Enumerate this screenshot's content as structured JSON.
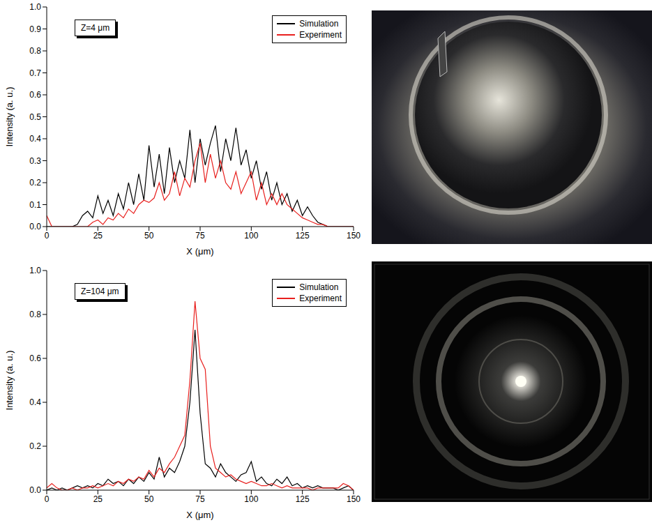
{
  "chart_data": [
    {
      "type": "line",
      "annotation": "Z=4 μm",
      "x_label": "X (μm)",
      "y_label": "Intensity (a. u.)",
      "legend": "upper right",
      "xlim": [
        0,
        150
      ],
      "ylim": [
        0,
        1
      ],
      "xticks": [
        0,
        25,
        50,
        75,
        100,
        125,
        150
      ],
      "yticks": [
        {
          "value": 0,
          "label": "0.0"
        },
        0.1,
        0.2,
        0.3,
        0.4,
        0.5,
        0.6,
        0.7,
        0.8,
        0.9,
        {
          "value": 1,
          "label": "1.0"
        }
      ],
      "x": [
        0,
        2.5,
        5,
        7.5,
        10,
        12.5,
        15,
        17.5,
        20,
        22.5,
        25,
        27.5,
        30,
        32.5,
        35,
        37.5,
        40,
        42.5,
        45,
        47.5,
        50,
        52.5,
        55,
        57.5,
        60,
        62.5,
        65,
        67.5,
        70,
        72.5,
        75,
        77.5,
        80,
        82.5,
        85,
        87.5,
        90,
        92.5,
        95,
        97.5,
        100,
        102.5,
        105,
        107.5,
        110,
        112.5,
        115,
        117.5,
        120,
        122.5,
        125,
        127.5,
        130,
        132.5,
        135,
        137.5,
        140,
        142.5,
        145,
        147.5,
        150
      ],
      "series": [
        {
          "name": "Simulation",
          "color": "#000000",
          "values": [
            0,
            0,
            0,
            0,
            0,
            0,
            0.01,
            0.05,
            0.07,
            0.04,
            0.14,
            0.06,
            0.12,
            0.05,
            0.15,
            0.08,
            0.2,
            0.1,
            0.24,
            0.12,
            0.37,
            0.18,
            0.33,
            0.15,
            0.36,
            0.2,
            0.3,
            0.22,
            0.44,
            0.2,
            0.4,
            0.28,
            0.38,
            0.46,
            0.25,
            0.4,
            0.3,
            0.45,
            0.28,
            0.35,
            0.22,
            0.3,
            0.17,
            0.25,
            0.12,
            0.2,
            0.1,
            0.15,
            0.07,
            0.12,
            0.05,
            0.09,
            0.05,
            0.02,
            0.01,
            0,
            0,
            0,
            0,
            0,
            0
          ]
        },
        {
          "name": "Experiment",
          "color": "#e8201e",
          "values": [
            0.05,
            0,
            0,
            0,
            0,
            0,
            0,
            0,
            0,
            0.02,
            0.03,
            0.01,
            0.04,
            0.03,
            0.06,
            0.04,
            0.08,
            0.06,
            0.1,
            0.12,
            0.11,
            0.13,
            0.2,
            0.12,
            0.15,
            0.25,
            0.14,
            0.22,
            0.18,
            0.3,
            0.38,
            0.2,
            0.33,
            0.22,
            0.3,
            0.2,
            0.17,
            0.25,
            0.15,
            0.2,
            0.25,
            0.12,
            0.2,
            0.1,
            0.15,
            0.1,
            0.15,
            0.1,
            0.08,
            0.06,
            0.04,
            0.03,
            0.02,
            0.01,
            0.01,
            0,
            0,
            0,
            0,
            0,
            0
          ]
        }
      ]
    },
    {
      "type": "line",
      "annotation": "Z=104 μm",
      "x_label": "X (μm)",
      "y_label": "Intensity (a. u.)",
      "legend": "upper right",
      "xlim": [
        0,
        150
      ],
      "ylim": [
        0,
        1
      ],
      "xticks": [
        0,
        25,
        50,
        75,
        100,
        125,
        150
      ],
      "yticks": [
        {
          "value": 0,
          "label": "0.0"
        },
        0.2,
        0.4,
        0.6,
        0.8,
        {
          "value": 1,
          "label": "1.0"
        }
      ],
      "x": [
        0,
        2.5,
        5,
        7.5,
        10,
        12.5,
        15,
        17.5,
        20,
        22.5,
        25,
        27.5,
        30,
        32.5,
        35,
        37.5,
        40,
        42.5,
        45,
        47.5,
        50,
        52.5,
        55,
        57.5,
        60,
        62.5,
        65,
        67.5,
        70,
        72.5,
        75,
        77.5,
        80,
        82.5,
        85,
        87.5,
        90,
        92.5,
        95,
        97.5,
        100,
        102.5,
        105,
        107.5,
        110,
        112.5,
        115,
        117.5,
        120,
        122.5,
        125,
        127.5,
        130,
        132.5,
        135,
        137.5,
        140,
        142.5,
        145,
        147.5,
        150
      ],
      "series": [
        {
          "name": "Simulation",
          "color": "#000000",
          "values": [
            0,
            0.01,
            0,
            0.01,
            0,
            0.01,
            0.02,
            0.01,
            0.02,
            0.01,
            0.03,
            0.02,
            0.05,
            0.03,
            0.04,
            0.02,
            0.05,
            0.03,
            0.06,
            0.04,
            0.08,
            0.05,
            0.15,
            0.06,
            0.1,
            0.08,
            0.13,
            0.2,
            0.4,
            0.73,
            0.35,
            0.12,
            0.1,
            0.06,
            0.12,
            0.08,
            0.06,
            0.04,
            0.07,
            0.08,
            0.13,
            0.04,
            0.06,
            0.03,
            0.02,
            0.05,
            0.03,
            0.06,
            0.02,
            0.03,
            0.01,
            0.02,
            0.01,
            0.02,
            0.01,
            0.01,
            0.01,
            0,
            0.01,
            0.02,
            0
          ]
        },
        {
          "name": "Experiment",
          "color": "#e8201e",
          "values": [
            0.01,
            0.03,
            0.01,
            0,
            0,
            0.01,
            0,
            0.01,
            0.01,
            0.02,
            0.01,
            0.02,
            0.03,
            0.02,
            0.04,
            0.03,
            0.05,
            0.04,
            0.06,
            0.05,
            0.09,
            0.06,
            0.1,
            0.08,
            0.12,
            0.15,
            0.2,
            0.25,
            0.5,
            0.86,
            0.6,
            0.55,
            0.2,
            0.1,
            0.08,
            0.06,
            0.07,
            0.05,
            0.04,
            0.03,
            0.04,
            0.03,
            0.02,
            0.02,
            0.03,
            0.02,
            0.01,
            0.02,
            0.01,
            0.01,
            0.01,
            0.01,
            0,
            0.01,
            0.01,
            0.01,
            0.01,
            0.01,
            0.03,
            0.02,
            0
          ]
        }
      ]
    }
  ]
}
